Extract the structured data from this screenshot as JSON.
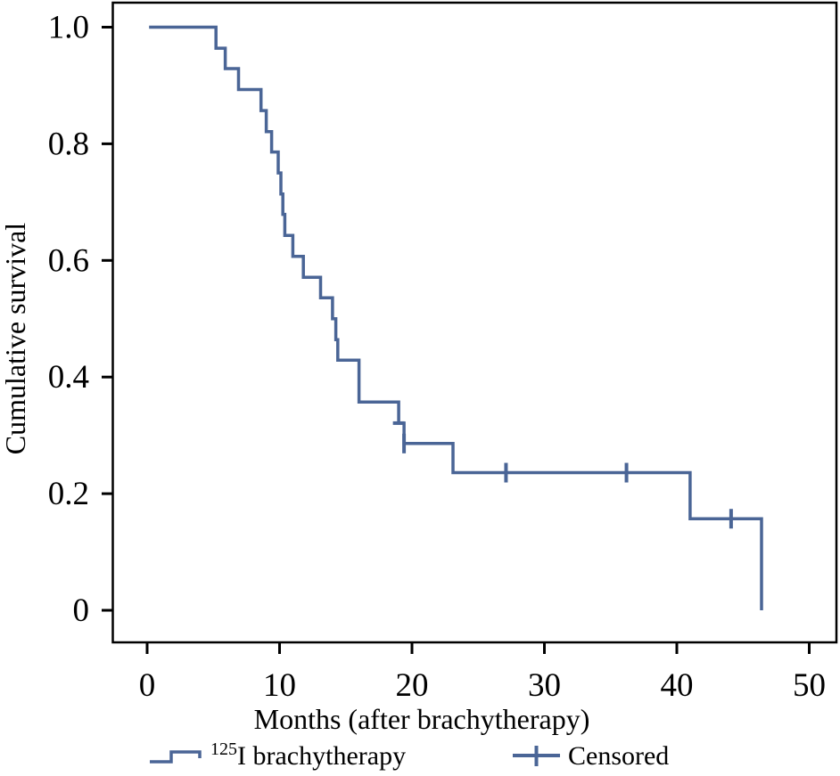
{
  "chart_data": {
    "type": "line",
    "chart_kind": "kaplan_meier_step_curve",
    "title": "",
    "xlabel": "Months (after brachytherapy)",
    "ylabel": "Cumulative survival",
    "x_ticks": [
      0,
      10,
      20,
      30,
      40,
      50
    ],
    "y_ticks": [
      1.0,
      0.8,
      0.6,
      0.4,
      0.2,
      0
    ],
    "y_tick_labels": [
      "1.0",
      "0.8",
      "0.6",
      "0.4",
      "0.2",
      "0"
    ],
    "xlim": [
      -2.6,
      52.0
    ],
    "ylim": [
      -0.055,
      1.042
    ],
    "grid": false,
    "legend_position": "below-x-axis",
    "line_color": "#4a6596",
    "axis_color": "#000000",
    "series": [
      {
        "name": "125I brachytherapy",
        "isotope_superscript": "125",
        "label_rest": "I brachytherapy",
        "step_points": [
          [
            0.15,
            1.0
          ],
          [
            5.2,
            0.964
          ],
          [
            5.9,
            0.929
          ],
          [
            6.9,
            0.893
          ],
          [
            8.6,
            0.857
          ],
          [
            9.0,
            0.821
          ],
          [
            9.4,
            0.786
          ],
          [
            9.9,
            0.75
          ],
          [
            10.1,
            0.714
          ],
          [
            10.25,
            0.679
          ],
          [
            10.4,
            0.643
          ],
          [
            11.0,
            0.607
          ],
          [
            11.8,
            0.571
          ],
          [
            13.1,
            0.536
          ],
          [
            14.0,
            0.5
          ],
          [
            14.25,
            0.464
          ],
          [
            14.4,
            0.429
          ],
          [
            16.0,
            0.357
          ],
          [
            19.0,
            0.321
          ],
          [
            19.4,
            0.286
          ],
          [
            23.1,
            0.236
          ],
          [
            41.0,
            0.157
          ],
          [
            46.4,
            0.0
          ]
        ]
      }
    ],
    "censored_marks": [
      {
        "t": 19.0,
        "s": 0.321,
        "orientation": "horizontal"
      },
      {
        "t": 19.4,
        "s": 0.286,
        "orientation": "vertical"
      },
      {
        "t": 27.1,
        "s": 0.236,
        "orientation": "vertical"
      },
      {
        "t": 36.2,
        "s": 0.236,
        "orientation": "vertical"
      },
      {
        "t": 44.1,
        "s": 0.157,
        "orientation": "vertical"
      }
    ],
    "legend": {
      "censored_label": "Censored"
    }
  }
}
